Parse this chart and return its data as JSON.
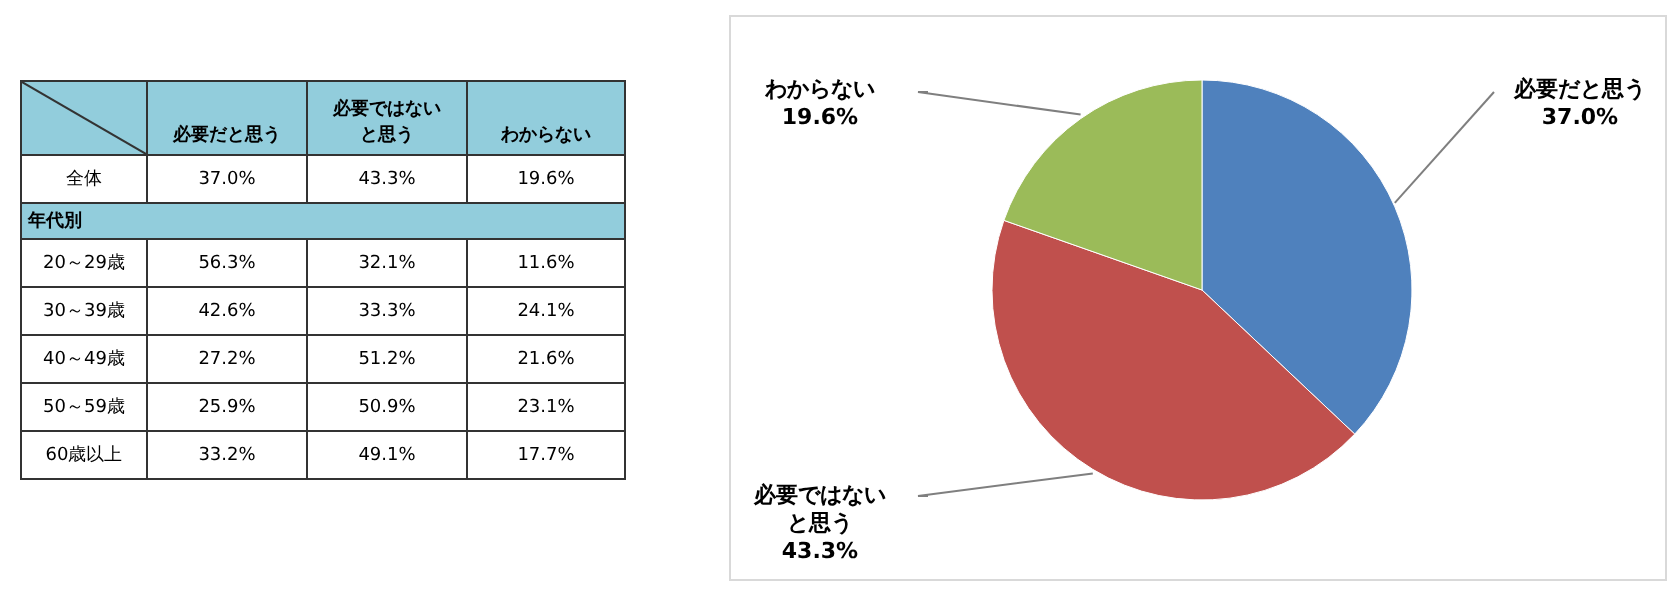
{
  "chart_data": [
    {
      "type": "heatmap",
      "categories": [
        "必要だと思う",
        "必要ではないと思う",
        "わからない"
      ],
      "y_categories": [
        "全体",
        "年代別",
        "20～29歳",
        "30～39歳",
        "40～49歳",
        "50～59歳",
        "60歳以上"
      ],
      "cells": [
        [
          37.0,
          43.3,
          19.6
        ],
        [
          null,
          null,
          null
        ],
        [
          56.3,
          32.1,
          11.6
        ],
        [
          42.6,
          33.3,
          24.1
        ],
        [
          27.2,
          51.2,
          21.6
        ],
        [
          25.9,
          50.9,
          23.1
        ],
        [
          33.2,
          49.1,
          17.7
        ]
      ],
      "cell_labels": [
        [
          "37.0%",
          "43.3%",
          "19.6%"
        ],
        [
          null,
          null,
          null
        ],
        [
          "56.3%",
          "32.1%",
          "11.6%"
        ],
        [
          "42.6%",
          "33.3%",
          "24.1%"
        ],
        [
          "27.2%",
          "51.2%",
          "21.6%"
        ],
        [
          "25.9%",
          "50.9%",
          "23.1%"
        ],
        [
          "33.2%",
          "49.1%",
          "17.7%"
        ]
      ]
    },
    {
      "type": "pie",
      "categories": [
        "必要だと思う",
        "必要ではないと思う",
        "わからない"
      ],
      "values": [
        37.0,
        43.3,
        19.6
      ],
      "colors": [
        "#4f81bd",
        "#c0504d",
        "#9bbb59"
      ],
      "value_labels": [
        "37.0%",
        "43.3%",
        "19.6%"
      ]
    }
  ]
}
